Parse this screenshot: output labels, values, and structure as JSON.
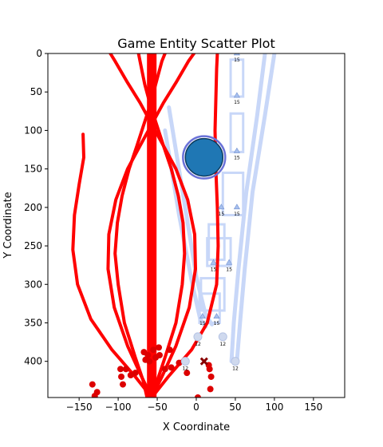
{
  "chart_data": {
    "type": "scatter",
    "title": "Game Entity Scatter Plot",
    "xlabel": "X Coordinate",
    "ylabel": "Y Coordinate",
    "xlim": [
      -190,
      190
    ],
    "ylim": [
      447,
      0
    ],
    "y_inverted": true,
    "grid": false,
    "xticks": [
      -150,
      -100,
      -50,
      0,
      50,
      100,
      150
    ],
    "yticks": [
      0,
      50,
      100,
      150,
      200,
      250,
      300,
      350,
      400
    ],
    "colors": {
      "path": "#ff0000",
      "points": "#dd0000",
      "corridor": "#c8d7f8",
      "marker_fill": "#a8c0ee",
      "player": "#1f77b4",
      "player_halo": "#6a72d8",
      "cross": "#880000"
    },
    "vertical_beam": {
      "x": -57,
      "y_range": [
        0,
        447
      ]
    },
    "curves": [
      [
        [
          -63,
          447
        ],
        [
          -68,
          425
        ],
        [
          -78,
          395
        ],
        [
          -92,
          350
        ],
        [
          -100,
          300
        ],
        [
          -104,
          260
        ],
        [
          -101,
          220
        ],
        [
          -95,
          185
        ],
        [
          -86,
          150
        ],
        [
          -76,
          120
        ],
        [
          -68,
          95
        ],
        [
          -60,
          70
        ],
        [
          -52,
          40
        ],
        [
          -44,
          10
        ],
        [
          -40,
          0
        ]
      ],
      [
        [
          -57,
          447
        ],
        [
          -50,
          425
        ],
        [
          -40,
          395
        ],
        [
          -26,
          350
        ],
        [
          -18,
          300
        ],
        [
          -15,
          260
        ],
        [
          -17,
          220
        ],
        [
          -23,
          185
        ],
        [
          -32,
          150
        ],
        [
          -42,
          120
        ],
        [
          -50,
          95
        ],
        [
          -58,
          70
        ],
        [
          -66,
          40
        ],
        [
          -72,
          10
        ],
        [
          -74,
          0
        ]
      ],
      [
        [
          -57,
          447
        ],
        [
          -70,
          420
        ],
        [
          -88,
          380
        ],
        [
          -105,
          330
        ],
        [
          -113,
          280
        ],
        [
          -112,
          235
        ],
        [
          -103,
          190
        ],
        [
          -88,
          150
        ],
        [
          -72,
          120
        ],
        [
          -57,
          92
        ],
        [
          -42,
          64
        ],
        [
          -26,
          38
        ],
        [
          -10,
          10
        ],
        [
          -3,
          0
        ]
      ],
      [
        [
          -57,
          447
        ],
        [
          -44,
          420
        ],
        [
          -26,
          380
        ],
        [
          -9,
          330
        ],
        [
          -1,
          280
        ],
        [
          -2,
          235
        ],
        [
          -11,
          190
        ],
        [
          -26,
          150
        ],
        [
          -42,
          120
        ],
        [
          -57,
          92
        ],
        [
          -72,
          64
        ],
        [
          -88,
          38
        ],
        [
          -104,
          10
        ],
        [
          -110,
          0
        ]
      ],
      [
        [
          -57,
          447
        ],
        [
          -78,
          420
        ],
        [
          -108,
          385
        ],
        [
          -135,
          345
        ],
        [
          -152,
          300
        ],
        [
          -158,
          255
        ],
        [
          -156,
          210
        ],
        [
          -150,
          170
        ],
        [
          -144,
          135
        ],
        [
          -145,
          105
        ]
      ],
      [
        [
          -57,
          447
        ],
        [
          -36,
          420
        ],
        [
          -6,
          385
        ],
        [
          14,
          350
        ],
        [
          26,
          300
        ],
        [
          28,
          250
        ],
        [
          27,
          200
        ],
        [
          25,
          150
        ],
        [
          24,
          100
        ],
        [
          25,
          60
        ],
        [
          26,
          20
        ],
        [
          27,
          0
        ]
      ]
    ],
    "corridors": [
      [
        [
          -40,
          100
        ],
        [
          -22,
          210
        ],
        [
          -5,
          300
        ],
        [
          5,
          345
        ],
        [
          12,
          355
        ]
      ],
      [
        [
          -35,
          70
        ],
        [
          -15,
          195
        ],
        [
          0,
          290
        ],
        [
          12,
          340
        ],
        [
          20,
          352
        ]
      ],
      [
        [
          100,
          0
        ],
        [
          88,
          80
        ],
        [
          72,
          180
        ],
        [
          62,
          280
        ],
        [
          56,
          350
        ],
        [
          52,
          400
        ]
      ],
      [
        [
          88,
          0
        ],
        [
          78,
          80
        ],
        [
          64,
          180
        ],
        [
          54,
          280
        ],
        [
          48,
          350
        ],
        [
          45,
          400
        ]
      ]
    ],
    "corridor_boxes": [
      [
        44,
        8,
        60,
        56
      ],
      [
        44,
        78,
        60,
        128
      ],
      [
        34,
        155,
        60,
        210
      ],
      [
        16,
        222,
        36,
        268
      ],
      [
        14,
        240,
        44,
        276
      ],
      [
        6,
        292,
        36,
        334
      ],
      [
        4,
        312,
        30,
        350
      ]
    ],
    "triangle_markers": [
      {
        "x": 52,
        "y": 0,
        "label": "15"
      },
      {
        "x": 52,
        "y": 55,
        "label": "15"
      },
      {
        "x": 52,
        "y": 127,
        "label": "15"
      },
      {
        "x": 32,
        "y": 200,
        "label": "15"
      },
      {
        "x": 52,
        "y": 200,
        "label": "15"
      },
      {
        "x": 22,
        "y": 272,
        "label": "15"
      },
      {
        "x": 42,
        "y": 272,
        "label": "15"
      },
      {
        "x": 8,
        "y": 342,
        "label": "15"
      },
      {
        "x": 26,
        "y": 342,
        "label": "15"
      }
    ],
    "circle_markers": [
      {
        "x": 2,
        "y": 368,
        "label": "12"
      },
      {
        "x": 34,
        "y": 368,
        "label": "12"
      },
      {
        "x": -14,
        "y": 400,
        "label": "12"
      },
      {
        "x": 50,
        "y": 400,
        "label": "12"
      }
    ],
    "player": {
      "x": 10,
      "y": 135,
      "r_data": 24
    },
    "cross_marker": {
      "x": 10,
      "y": 400
    },
    "red_points": [
      [
        -133,
        430
      ],
      [
        -127,
        440
      ],
      [
        -130,
        445
      ],
      [
        -97,
        410
      ],
      [
        -96,
        420
      ],
      [
        -94,
        430
      ],
      [
        -90,
        410
      ],
      [
        -84,
        418
      ],
      [
        -78,
        415
      ],
      [
        -67,
        388
      ],
      [
        -65,
        398
      ],
      [
        -62,
        392
      ],
      [
        -60,
        400
      ],
      [
        -55,
        385
      ],
      [
        -52,
        395
      ],
      [
        -47,
        392
      ],
      [
        -48,
        382
      ],
      [
        -34,
        385
      ],
      [
        -40,
        410
      ],
      [
        -32,
        408
      ],
      [
        -22,
        402
      ],
      [
        -12,
        415
      ],
      [
        2,
        447
      ],
      [
        16,
        405
      ],
      [
        17,
        410
      ],
      [
        19,
        420
      ],
      [
        18,
        436
      ]
    ]
  }
}
